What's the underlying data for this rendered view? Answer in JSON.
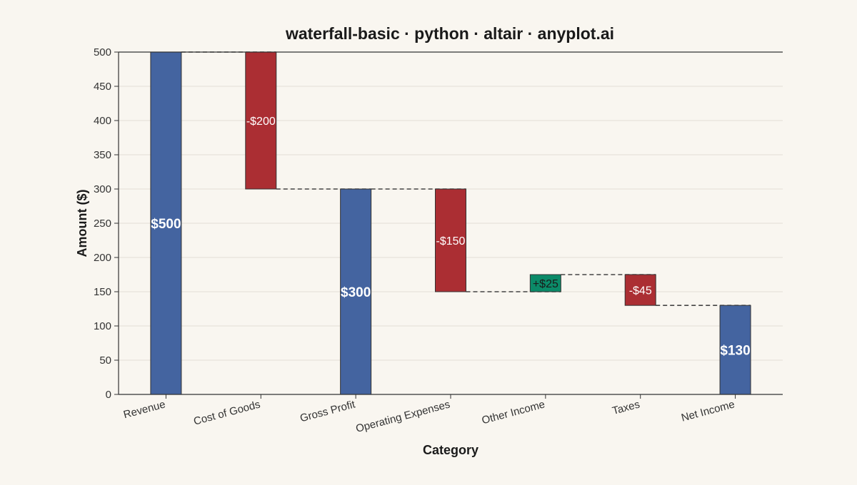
{
  "chart_data": {
    "type": "bar",
    "subtype": "waterfall",
    "title": "waterfall-basic · python · altair · anyplot.ai",
    "xlabel": "Category",
    "ylabel": "Amount ($)",
    "ylim": [
      0,
      500
    ],
    "yticks": [
      0,
      50,
      100,
      150,
      200,
      250,
      300,
      350,
      400,
      450,
      500
    ],
    "grid": true,
    "legend": "none",
    "colors": {
      "total": "#4464a0",
      "decrease": "#ab2e33",
      "increase": "#0b8a68",
      "connector": "#444444",
      "background": "#f9f6f0",
      "grid": "#e3ded6"
    },
    "bars": [
      {
        "category": "Revenue",
        "kind": "total",
        "start": 0,
        "end": 500,
        "label": "$500"
      },
      {
        "category": "Cost of Goods",
        "kind": "decrease",
        "start": 500,
        "end": 300,
        "label": "-$200"
      },
      {
        "category": "Gross Profit",
        "kind": "total",
        "start": 0,
        "end": 300,
        "label": "$300"
      },
      {
        "category": "Operating Expenses",
        "kind": "decrease",
        "start": 300,
        "end": 150,
        "label": "-$150"
      },
      {
        "category": "Other Income",
        "kind": "increase",
        "start": 150,
        "end": 175,
        "label": "+$25"
      },
      {
        "category": "Taxes",
        "kind": "decrease",
        "start": 175,
        "end": 130,
        "label": "-$45"
      },
      {
        "category": "Net Income",
        "kind": "total",
        "start": 0,
        "end": 130,
        "label": "$130"
      }
    ]
  }
}
